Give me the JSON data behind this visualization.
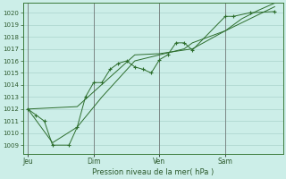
{
  "bg_color": "#cceee8",
  "plot_bg": "#cceee8",
  "grid_color": "#aad4cc",
  "line_color": "#2d6e2d",
  "marker_color": "#2d6e2d",
  "ylabel_ticks": [
    1009,
    1010,
    1011,
    1012,
    1013,
    1014,
    1015,
    1016,
    1017,
    1018,
    1019,
    1020
  ],
  "ylim": [
    1008.3,
    1020.8
  ],
  "xlabel": "Pression niveau de la mer( hPa )",
  "xtick_labels": [
    "Jeu",
    "Dim",
    "Ven",
    "Sam"
  ],
  "vline_x": [
    0.0,
    4.0,
    8.0,
    12.0
  ],
  "xlim": [
    -0.3,
    15.5
  ],
  "series1_x": [
    0,
    0.5,
    1.0,
    1.5,
    2.5,
    3.0,
    3.5,
    4.0,
    4.5,
    5.0,
    5.5,
    6.0,
    6.5,
    7.0,
    7.5,
    8.0,
    8.5,
    9.0,
    9.5,
    10.0,
    12.0,
    12.5,
    13.5,
    15.0
  ],
  "series1_y": [
    1012.0,
    1011.5,
    1011.0,
    1009.0,
    1009.0,
    1010.5,
    1013.0,
    1014.2,
    1014.2,
    1015.3,
    1015.8,
    1016.0,
    1015.5,
    1015.3,
    1015.0,
    1016.1,
    1016.5,
    1017.5,
    1017.5,
    1016.9,
    1019.7,
    1019.7,
    1020.0,
    1020.1
  ],
  "series2_x": [
    0,
    3.0,
    6.5,
    8.0,
    10.0,
    12.0,
    13.5,
    15.0
  ],
  "series2_y": [
    1012.0,
    1012.2,
    1016.5,
    1016.6,
    1017.0,
    1018.5,
    1019.5,
    1020.5
  ],
  "series3_x": [
    0,
    1.5,
    3.0,
    4.5,
    6.5,
    8.0,
    9.5,
    10.0,
    12.0,
    13.0,
    14.0,
    15.0
  ],
  "series3_y": [
    1012.0,
    1009.2,
    1010.5,
    1013.0,
    1016.0,
    1016.5,
    1017.0,
    1017.5,
    1018.5,
    1019.5,
    1020.2,
    1020.8
  ]
}
